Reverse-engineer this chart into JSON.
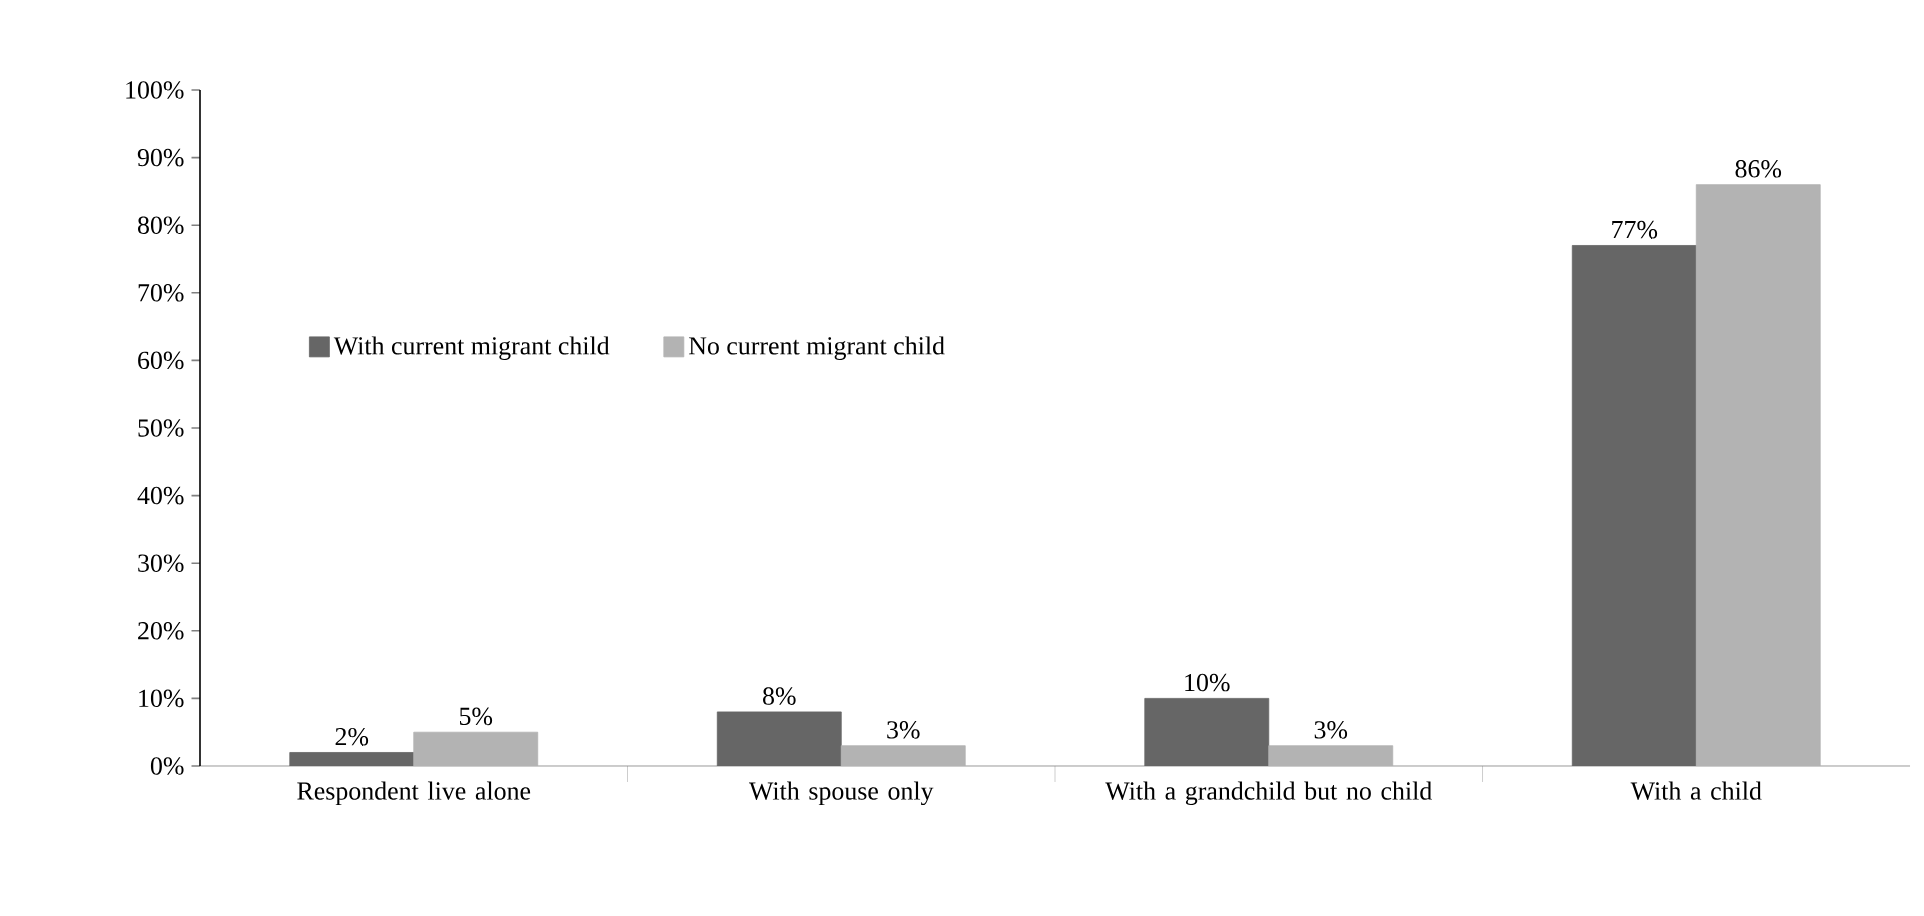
{
  "chart_data": {
    "type": "bar",
    "categories": [
      "Respondent live alone",
      "With spouse only",
      "With a grandchild but no child",
      "With a child"
    ],
    "series": [
      {
        "name": "With current migrant child",
        "color": "#666666",
        "values": [
          2,
          8,
          10,
          77
        ],
        "value_labels": [
          "2%",
          "8%",
          "10%",
          "77%"
        ]
      },
      {
        "name": "No current migrant child",
        "color": "#b3b3b3",
        "values": [
          5,
          3,
          3,
          86
        ],
        "value_labels": [
          "5%",
          "3%",
          "3%",
          "86%"
        ]
      }
    ],
    "ylim": [
      0,
      100
    ],
    "yticks": [
      {
        "value": 0,
        "label": "0%"
      },
      {
        "value": 10,
        "label": "10%"
      },
      {
        "value": 20,
        "label": "20%"
      },
      {
        "value": 30,
        "label": "30%"
      },
      {
        "value": 40,
        "label": "40%"
      },
      {
        "value": 50,
        "label": "50%"
      },
      {
        "value": 60,
        "label": "60%"
      },
      {
        "value": 70,
        "label": "70%"
      },
      {
        "value": 80,
        "label": "80%"
      },
      {
        "value": 90,
        "label": "90%"
      },
      {
        "value": 100,
        "label": "100%"
      }
    ],
    "legend": "left",
    "grid": false
  }
}
